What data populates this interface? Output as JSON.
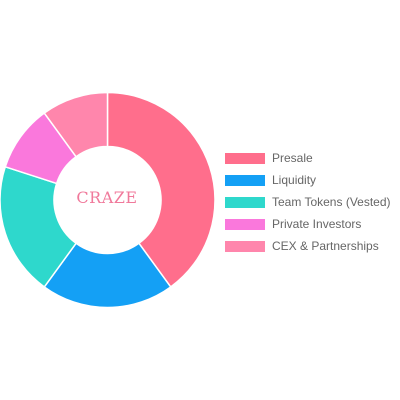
{
  "chart_data": {
    "type": "pie",
    "variant": "doughnut",
    "center_text": "CRAZE",
    "categories": [
      "Presale",
      "Liquidity",
      "Team Tokens (Vested)",
      "Private Investors",
      "CEX & Partnerships"
    ],
    "values": [
      40,
      20,
      20,
      10,
      10
    ],
    "colors": [
      "#ff6e8c",
      "#14a0f5",
      "#2ed8cc",
      "#fa78dc",
      "#ff86ac"
    ],
    "legend_position": "right"
  }
}
